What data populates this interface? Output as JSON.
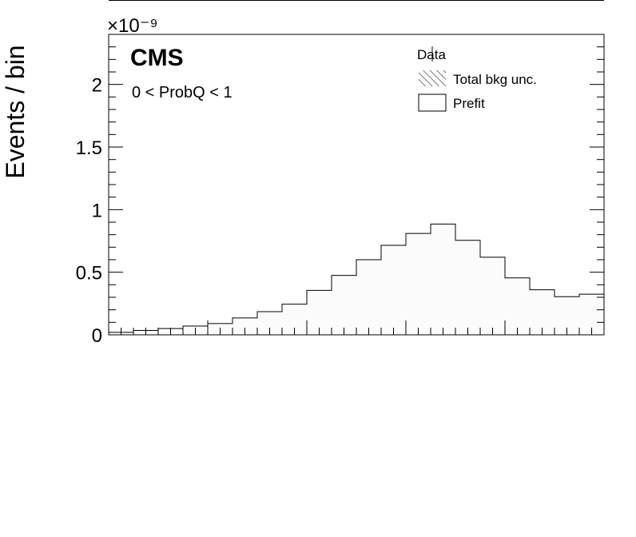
{
  "chart_data": {
    "type": "bar",
    "ylabel": "Events / bin",
    "y_multiplier": "×10⁻⁹",
    "ylim": [
      0,
      2.4
    ],
    "yticks": [
      0,
      0.5,
      1,
      1.5,
      2
    ],
    "ytick_labels": [
      "0",
      "0.5",
      "1",
      "1.5",
      "2"
    ],
    "experiment_label": "CMS",
    "region_label": "0 < ProbQ < 1",
    "legend": {
      "placement": "top-right",
      "entries": [
        {
          "label": "Data",
          "style": "marker"
        },
        {
          "label": "Total bkg unc.",
          "style": "hatch"
        },
        {
          "label": "Prefit",
          "style": "box"
        }
      ]
    },
    "series": [
      {
        "name": "Prefit",
        "values": [
          0.02,
          0.035,
          0.05,
          0.07,
          0.09,
          0.135,
          0.185,
          0.245,
          0.355,
          0.475,
          0.6,
          0.715,
          0.81,
          0.885,
          0.755,
          0.62,
          0.455,
          0.36,
          0.305,
          0.325
        ]
      }
    ],
    "grid": false,
    "colors": {
      "fill": "#fbfbfb",
      "line": "#000000"
    }
  }
}
